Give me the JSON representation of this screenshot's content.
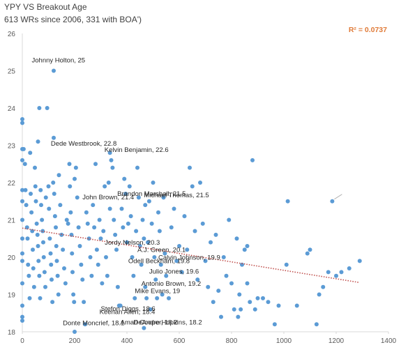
{
  "chart_data": {
    "type": "scatter",
    "title": "YPY VS Breakout Age",
    "subtitle": "613 WRs since 2006, 331 with BOA')",
    "xlabel": "",
    "ylabel": "",
    "xlim": [
      0,
      1400
    ],
    "ylim": [
      18,
      26
    ],
    "x_ticks": [
      "0",
      "200",
      "400",
      "600",
      "800",
      "1000",
      "1200",
      "1400"
    ],
    "y_ticks": [
      "18",
      "19",
      "20",
      "21",
      "22",
      "23",
      "24",
      "25",
      "26"
    ],
    "grid": false,
    "legend": "none",
    "point_color": "#5b9bd5",
    "trendline": {
      "type": "linear",
      "color": "#c0504d",
      "r2_label": "R² = 0.0737",
      "r2_color": "#e07b39",
      "x": [
        0,
        1290
      ],
      "y": [
        20.78,
        19.32
      ]
    },
    "labeled_points": [
      {
        "label": "Johnny Holton, 25",
        "x": 120,
        "y": 25.0
      },
      {
        "label": "Dede Westbrook, 22.8",
        "x": 335,
        "y": 22.8
      },
      {
        "label": "Kelvin Benjamin, 22.6",
        "x": 880,
        "y": 22.6
      },
      {
        "label": "John Brown, 21.4",
        "x": 470,
        "y": 21.4
      },
      {
        "label": "Brandon Marshall, 21.5",
        "x": 1015,
        "y": 21.5
      },
      {
        "label": "Michael Thomas, 21.5",
        "x": 1185,
        "y": 21.5
      },
      {
        "label": "Jordy Nelson, 20.3",
        "x": 860,
        "y": 20.3
      },
      {
        "label": "A.J. Green, 20.1",
        "x": 1090,
        "y": 20.1
      },
      {
        "label": "Calvin Johnson, 19.9",
        "x": 1290,
        "y": 19.9
      },
      {
        "label": "Odell Beckham, 19.8",
        "x": 1010,
        "y": 19.8
      },
      {
        "label": "Julio Jones, 19.6",
        "x": 1220,
        "y": 19.6
      },
      {
        "label": "Antonio Brown, 19.2",
        "x": 1150,
        "y": 19.2
      },
      {
        "label": "Mike Evans, 19",
        "x": 1135,
        "y": 19.0
      },
      {
        "label": "Stefon Diggs, 18.6",
        "x": 835,
        "y": 18.6
      },
      {
        "label": "Keenan Allen, 18.4",
        "x": 825,
        "y": 18.4
      },
      {
        "label": "Donte Moncrief, 18.1",
        "x": 465,
        "y": 18.1
      },
      {
        "label": "Amari Cooper, 18.2",
        "x": 965,
        "y": 18.2
      },
      {
        "label": "DeAndre Hopkins, 18.2",
        "x": 1125,
        "y": 18.2
      }
    ],
    "points": [
      [
        0,
        23.7
      ],
      [
        0,
        23.6
      ],
      [
        0,
        22.9
      ],
      [
        5,
        22.9
      ],
      [
        0,
        22.6
      ],
      [
        0,
        21.8
      ],
      [
        0,
        21.5
      ],
      [
        0,
        21.0
      ],
      [
        0,
        20.5
      ],
      [
        0,
        20.1
      ],
      [
        0,
        19.9
      ],
      [
        0,
        19.3
      ],
      [
        0,
        18.7
      ],
      [
        0,
        18.4
      ],
      [
        0,
        18.3
      ],
      [
        10,
        22.5
      ],
      [
        12,
        21.8
      ],
      [
        15,
        21.4
      ],
      [
        18,
        20.8
      ],
      [
        20,
        20.5
      ],
      [
        22,
        19.8
      ],
      [
        25,
        19.5
      ],
      [
        28,
        18.9
      ],
      [
        30,
        22.8
      ],
      [
        32,
        21.7
      ],
      [
        35,
        21.2
      ],
      [
        38,
        20.7
      ],
      [
        40,
        20.2
      ],
      [
        42,
        19.7
      ],
      [
        45,
        19.2
      ],
      [
        48,
        22.4
      ],
      [
        50,
        21.9
      ],
      [
        52,
        21.5
      ],
      [
        55,
        20.9
      ],
      [
        58,
        20.6
      ],
      [
        60,
        20.3
      ],
      [
        62,
        19.9
      ],
      [
        65,
        19.5
      ],
      [
        68,
        18.9
      ],
      [
        60,
        23.1
      ],
      [
        65,
        24.0
      ],
      [
        70,
        21.8
      ],
      [
        72,
        21.4
      ],
      [
        75,
        21.0
      ],
      [
        78,
        20.7
      ],
      [
        80,
        20.4
      ],
      [
        82,
        20.0
      ],
      [
        85,
        19.6
      ],
      [
        88,
        19.2
      ],
      [
        90,
        21.6
      ],
      [
        95,
        24.0
      ],
      [
        100,
        21.9
      ],
      [
        102,
        21.3
      ],
      [
        105,
        20.5
      ],
      [
        108,
        20.1
      ],
      [
        110,
        19.8
      ],
      [
        112,
        19.4
      ],
      [
        115,
        18.8
      ],
      [
        118,
        22.0
      ],
      [
        120,
        23.2
      ],
      [
        122,
        21.7
      ],
      [
        125,
        21.1
      ],
      [
        128,
        20.8
      ],
      [
        130,
        20.3
      ],
      [
        132,
        19.9
      ],
      [
        135,
        19.5
      ],
      [
        138,
        19.0
      ],
      [
        140,
        22.2
      ],
      [
        145,
        21.4
      ],
      [
        150,
        20.6
      ],
      [
        155,
        20.2
      ],
      [
        160,
        19.7
      ],
      [
        165,
        19.3
      ],
      [
        170,
        21.0
      ],
      [
        175,
        20.9
      ],
      [
        180,
        22.5
      ],
      [
        182,
        21.9
      ],
      [
        185,
        21.2
      ],
      [
        188,
        20.6
      ],
      [
        190,
        20.1
      ],
      [
        192,
        19.6
      ],
      [
        195,
        19.0
      ],
      [
        198,
        18.8
      ],
      [
        200,
        22.1
      ],
      [
        200,
        18.0
      ],
      [
        205,
        22.4
      ],
      [
        210,
        21.6
      ],
      [
        215,
        20.8
      ],
      [
        220,
        20.3
      ],
      [
        225,
        19.8
      ],
      [
        230,
        19.4
      ],
      [
        235,
        18.8
      ],
      [
        240,
        18.2
      ],
      [
        245,
        21.2
      ],
      [
        250,
        20.9
      ],
      [
        255,
        20.5
      ],
      [
        260,
        20.0
      ],
      [
        265,
        19.5
      ],
      [
        270,
        21.4
      ],
      [
        275,
        20.8
      ],
      [
        280,
        22.5
      ],
      [
        285,
        20.2
      ],
      [
        290,
        19.8
      ],
      [
        295,
        21.0
      ],
      [
        300,
        20.5
      ],
      [
        305,
        19.3
      ],
      [
        310,
        20.7
      ],
      [
        315,
        21.9
      ],
      [
        320,
        20.0
      ],
      [
        325,
        19.5
      ],
      [
        330,
        22.0
      ],
      [
        335,
        21.3
      ],
      [
        340,
        22.6
      ],
      [
        345,
        22.4
      ],
      [
        350,
        21.0
      ],
      [
        355,
        20.6
      ],
      [
        360,
        20.2
      ],
      [
        365,
        19.2
      ],
      [
        370,
        18.7
      ],
      [
        375,
        18.7
      ],
      [
        380,
        21.3
      ],
      [
        385,
        20.8
      ],
      [
        390,
        22.1
      ],
      [
        395,
        21.7
      ],
      [
        400,
        20.4
      ],
      [
        405,
        20.9
      ],
      [
        410,
        21.9
      ],
      [
        415,
        21.1
      ],
      [
        420,
        20.0
      ],
      [
        425,
        19.5
      ],
      [
        430,
        18.9
      ],
      [
        435,
        20.7
      ],
      [
        440,
        22.4
      ],
      [
        445,
        21.6
      ],
      [
        450,
        20.3
      ],
      [
        455,
        19.8
      ],
      [
        460,
        21.0
      ],
      [
        465,
        20.5
      ],
      [
        470,
        19.2
      ],
      [
        475,
        18.9
      ],
      [
        480,
        20.4
      ],
      [
        485,
        21.5
      ],
      [
        490,
        18.6
      ],
      [
        495,
        20.9
      ],
      [
        500,
        22.0
      ],
      [
        505,
        20.0
      ],
      [
        510,
        19.4
      ],
      [
        515,
        18.9
      ],
      [
        520,
        21.2
      ],
      [
        525,
        20.7
      ],
      [
        530,
        19.8
      ],
      [
        535,
        19.0
      ],
      [
        540,
        21.6
      ],
      [
        545,
        20.1
      ],
      [
        550,
        19.5
      ],
      [
        560,
        18.9
      ],
      [
        570,
        20.8
      ],
      [
        580,
        21.3
      ],
      [
        590,
        19.9
      ],
      [
        600,
        20.3
      ],
      [
        610,
        19.6
      ],
      [
        620,
        21.1
      ],
      [
        630,
        20.2
      ],
      [
        640,
        22.4
      ],
      [
        650,
        21.9
      ],
      [
        660,
        20.7
      ],
      [
        670,
        19.4
      ],
      [
        680,
        22.0
      ],
      [
        690,
        20.9
      ],
      [
        700,
        19.9
      ],
      [
        710,
        19.2
      ],
      [
        720,
        20.4
      ],
      [
        730,
        18.8
      ],
      [
        740,
        20.6
      ],
      [
        750,
        19.1
      ],
      [
        760,
        18.4
      ],
      [
        770,
        20.0
      ],
      [
        780,
        19.5
      ],
      [
        790,
        21.0
      ],
      [
        800,
        19.3
      ],
      [
        810,
        18.6
      ],
      [
        820,
        20.5
      ],
      [
        830,
        19.0
      ],
      [
        840,
        19.8
      ],
      [
        850,
        20.2
      ],
      [
        860,
        19.3
      ],
      [
        870,
        18.8
      ],
      [
        890,
        18.6
      ],
      [
        900,
        18.9
      ],
      [
        920,
        18.9
      ],
      [
        940,
        18.8
      ],
      [
        980,
        18.7
      ],
      [
        1050,
        18.7
      ],
      [
        1100,
        20.2
      ],
      [
        1170,
        19.6
      ],
      [
        1200,
        19.5
      ],
      [
        1250,
        19.7
      ]
    ]
  }
}
